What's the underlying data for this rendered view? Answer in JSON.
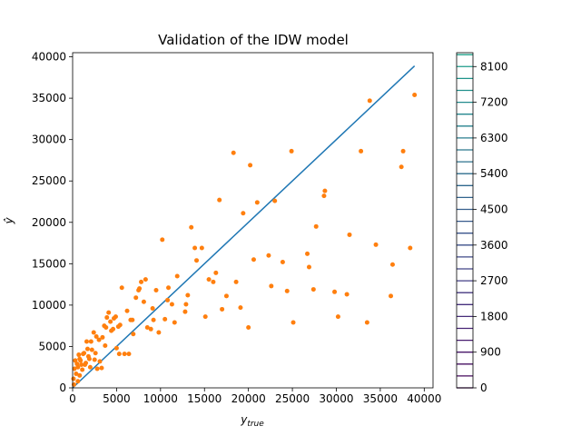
{
  "chart_data": [
    {
      "type": "scatter",
      "title": "Validation of the IDW model",
      "xlabel": "y",
      "xlabel_subscript": "true",
      "ylabel": "ŷ",
      "xlim": [
        0,
        41000
      ],
      "ylim": [
        0,
        40500
      ],
      "xticks": [
        0,
        5000,
        10000,
        15000,
        20000,
        25000,
        30000,
        35000,
        40000
      ],
      "yticks": [
        0,
        5000,
        10000,
        15000,
        20000,
        25000,
        30000,
        35000,
        40000
      ],
      "grid": false,
      "series": [
        {
          "kind": "line",
          "color": "#1f77b4",
          "x": [
            0,
            38900
          ],
          "y": [
            0,
            38900
          ]
        },
        {
          "kind": "scatter",
          "color": "#ff7f0e",
          "points": [
            [
              300,
              3300
            ],
            [
              500,
              2900
            ],
            [
              200,
              2300
            ],
            [
              400,
              1700
            ],
            [
              100,
              1100
            ],
            [
              600,
              800
            ],
            [
              150,
              400
            ],
            [
              800,
              3500
            ],
            [
              1000,
              2800
            ],
            [
              1200,
              4100
            ],
            [
              1500,
              3000
            ],
            [
              1800,
              3800
            ],
            [
              2000,
              2500
            ],
            [
              2200,
              4600
            ],
            [
              2500,
              3400
            ],
            [
              2800,
              2300
            ],
            [
              3000,
              5800
            ],
            [
              3300,
              2400
            ],
            [
              3600,
              7500
            ],
            [
              3900,
              8500
            ],
            [
              4100,
              9100
            ],
            [
              4400,
              6900
            ],
            [
              4700,
              8400
            ],
            [
              5000,
              4800
            ],
            [
              5300,
              4100
            ],
            [
              5600,
              12100
            ],
            [
              5900,
              4100
            ],
            [
              6200,
              9300
            ],
            [
              6600,
              8200
            ],
            [
              6900,
              6500
            ],
            [
              7200,
              10900
            ],
            [
              7500,
              11800
            ],
            [
              7800,
              12800
            ],
            [
              8100,
              10400
            ],
            [
              8500,
              7300
            ],
            [
              8900,
              7100
            ],
            [
              9200,
              8200
            ],
            [
              9500,
              11800
            ],
            [
              9800,
              6700
            ],
            [
              10200,
              17900
            ],
            [
              10500,
              8300
            ],
            [
              10900,
              12100
            ],
            [
              11300,
              10100
            ],
            [
              11600,
              7900
            ],
            [
              11900,
              13500
            ],
            [
              12800,
              9200
            ],
            [
              13100,
              11200
            ],
            [
              13500,
              19400
            ],
            [
              13900,
              16900
            ],
            [
              14100,
              15400
            ],
            [
              14700,
              16900
            ],
            [
              15100,
              8600
            ],
            [
              15500,
              13100
            ],
            [
              16000,
              12800
            ],
            [
              16300,
              13900
            ],
            [
              16700,
              22700
            ],
            [
              17000,
              9500
            ],
            [
              17500,
              11100
            ],
            [
              18300,
              28400
            ],
            [
              18600,
              12800
            ],
            [
              19100,
              9700
            ],
            [
              19400,
              21100
            ],
            [
              20000,
              7300
            ],
            [
              20200,
              26900
            ],
            [
              20600,
              15500
            ],
            [
              21000,
              22400
            ],
            [
              22300,
              16000
            ],
            [
              22600,
              12300
            ],
            [
              23000,
              22600
            ],
            [
              23900,
              15200
            ],
            [
              24400,
              11700
            ],
            [
              24900,
              28600
            ],
            [
              25100,
              7900
            ],
            [
              26700,
              16200
            ],
            [
              26900,
              14600
            ],
            [
              27400,
              11900
            ],
            [
              27700,
              19500
            ],
            [
              28600,
              23200
            ],
            [
              28700,
              23800
            ],
            [
              29800,
              11600
            ],
            [
              30200,
              8600
            ],
            [
              31200,
              11300
            ],
            [
              31500,
              18500
            ],
            [
              32800,
              28600
            ],
            [
              33500,
              7900
            ],
            [
              33800,
              34700
            ],
            [
              34500,
              17300
            ],
            [
              36200,
              11100
            ],
            [
              36400,
              14900
            ],
            [
              37400,
              26700
            ],
            [
              37600,
              28600
            ],
            [
              38400,
              16900
            ],
            [
              38900,
              35400
            ],
            [
              800,
              1500
            ],
            [
              1100,
              2200
            ],
            [
              1300,
              4200
            ],
            [
              1700,
              4700
            ],
            [
              2100,
              5600
            ],
            [
              2400,
              6700
            ],
            [
              2700,
              6200
            ],
            [
              3100,
              3200
            ],
            [
              3400,
              6100
            ],
            [
              3800,
              7300
            ],
            [
              4300,
              8000
            ],
            [
              4600,
              7100
            ],
            [
              5200,
              7400
            ],
            [
              6800,
              8200
            ],
            [
              7600,
              12000
            ],
            [
              9100,
              9600
            ],
            [
              10800,
              10600
            ],
            [
              12900,
              10100
            ],
            [
              600,
              2500
            ],
            [
              700,
              4000
            ],
            [
              900,
              3300
            ],
            [
              1400,
              2800
            ],
            [
              1600,
              5600
            ],
            [
              1900,
              3500
            ],
            [
              2600,
              4200
            ],
            [
              3700,
              5100
            ],
            [
              4900,
              8600
            ],
            [
              5400,
              7600
            ],
            [
              6400,
              4100
            ],
            [
              8300,
              13100
            ]
          ]
        }
      ]
    },
    {
      "type": "colorbar",
      "ticks": [
        0,
        900,
        1800,
        2700,
        3600,
        4500,
        5400,
        6300,
        7200,
        8100
      ],
      "vmin": 0,
      "vmax": 8450,
      "level_step": 300,
      "colors": [
        "#440154",
        "#46085c",
        "#471063",
        "#481769",
        "#481d6f",
        "#482475",
        "#472c7a",
        "#46307e",
        "#453781",
        "#433e85",
        "#414487",
        "#3f4889",
        "#3c4f8a",
        "#3a548c",
        "#375a8c",
        "#355f8d",
        "#32648e",
        "#30698e",
        "#2e6e8e",
        "#2c728e",
        "#2a788e",
        "#287d8e",
        "#26828e",
        "#24868e",
        "#228b8d",
        "#21918c",
        "#1f958b",
        "#1e9b8a",
        "#1fa088",
        "#22a785",
        "#27ad81",
        "#2eb37c",
        "#3bbb75",
        "#46c06f",
        "#54c568",
        "#63cb5f",
        "#75d054",
        "#86d549",
        "#95d840",
        "#a8db34",
        "#b8de29",
        "#cae11f",
        "#dae319",
        "#eae51a",
        "#fde725"
      ]
    }
  ]
}
